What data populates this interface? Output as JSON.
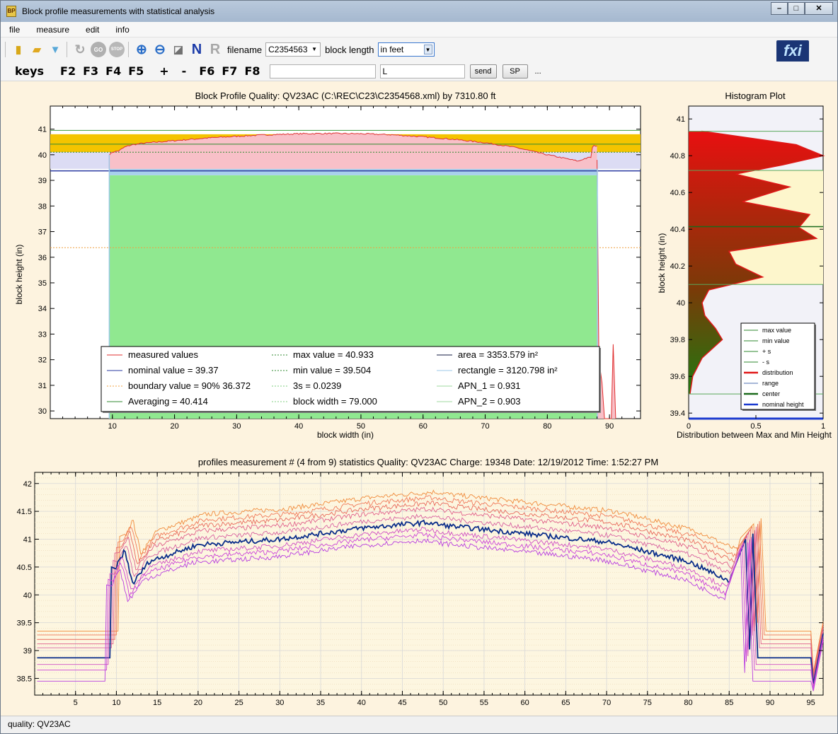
{
  "window": {
    "title": "Block profile measurements with statistical analysis",
    "app_icon": "BP"
  },
  "menu": [
    "file",
    "measure",
    "edit",
    "info"
  ],
  "toolbar": {
    "icons": [
      "folder-icon",
      "open-folder-icon",
      "filter-icon",
      "refresh-icon",
      "go-icon",
      "stop-icon",
      "zoom-in-icon",
      "zoom-out-icon",
      "eraser-icon",
      "n-icon",
      "r-icon"
    ],
    "icon_glyphs": [
      "▮",
      "▰",
      "▼",
      "↻",
      "GO",
      "STOP",
      "⊕",
      "⊖",
      "◪",
      "N",
      "R"
    ],
    "filename_label": "filename",
    "filename_value": "C2354563",
    "block_length_label": "block length",
    "block_length_value": "in feet",
    "logo": "fxi"
  },
  "keys": {
    "label": "keys",
    "buttons": [
      "F2",
      "F3",
      "F4",
      "F5",
      "+",
      "-",
      "F6",
      "F7",
      "F8"
    ],
    "input1": "",
    "input2": "L",
    "send": "send",
    "sp": "SP",
    "more": "..."
  },
  "charts": [
    {
      "id": "profile",
      "type": "area",
      "title": "Block Profile Quality: QV23AC (C:\\REC\\C23\\C2354568.xml) by 7310.80 ft",
      "xlabel": "block width (in)",
      "ylabel": "block height (in)",
      "xlim": [
        0,
        95
      ],
      "ylim": [
        29.7,
        41.9
      ],
      "x_ticks": [
        10,
        20,
        30,
        40,
        50,
        60,
        70,
        80,
        90
      ],
      "y_ticks": [
        30,
        31,
        32,
        33,
        34,
        35,
        36,
        37,
        38,
        39,
        40,
        41
      ],
      "reference_lines": {
        "max": 40.933,
        "min": 39.504,
        "nominal": 39.37,
        "boundary": 36.372,
        "averaging": 40.414,
        "upper_green": 40.95
      },
      "bands": {
        "gold": [
          40.1,
          40.8
        ],
        "lavender": [
          39.45,
          40.1
        ]
      },
      "block_range": [
        9.5,
        88.5
      ],
      "profile": {
        "x": [
          9.5,
          10,
          11,
          12,
          13,
          15,
          20,
          25,
          30,
          35,
          40,
          45,
          50,
          55,
          60,
          65,
          70,
          75,
          80,
          83,
          85,
          86,
          87,
          87.3,
          88
        ],
        "y": [
          40.0,
          40.1,
          40.15,
          40.3,
          40.38,
          40.45,
          40.55,
          40.65,
          40.72,
          40.78,
          40.82,
          40.83,
          40.82,
          40.78,
          40.7,
          40.6,
          40.47,
          40.28,
          40.0,
          39.85,
          39.75,
          39.85,
          39.9,
          40.35,
          40.35
        ]
      },
      "tail": {
        "x": [
          88,
          88.3,
          88.8,
          89.2,
          90.3,
          90.6,
          91
        ],
        "y": [
          39.8,
          32.0,
          31.1,
          29.7,
          29.7,
          32.6,
          29.7
        ]
      },
      "legend": [
        {
          "label": "measured values",
          "color": "#e03030",
          "style": "solid"
        },
        {
          "label": "nominal value = 39.37",
          "color": "#2a3aa0",
          "style": "solid"
        },
        {
          "label": "boundary value = 90% 36.372",
          "color": "#f0a040",
          "style": "dotted"
        },
        {
          "label": "Averaging = 40.414",
          "color": "#2f8a2f",
          "style": "solid"
        },
        {
          "label": "max value = 40.933",
          "color": "#2f8a2f",
          "style": "dotted"
        },
        {
          "label": "min value = 39.504",
          "color": "#2f8a2f",
          "style": "dotted"
        },
        {
          "label": "3s = 0.0239",
          "color": "#7fcc7f",
          "style": "dotted"
        },
        {
          "label": "block width = 79.000",
          "color": "#7fcc7f",
          "style": "dotted"
        },
        {
          "label": "area =  3353.579 in²",
          "color": "#101840",
          "style": "solid"
        },
        {
          "label": "rectangle = 3120.798 in²",
          "color": "#9cc8e8",
          "style": "solid"
        },
        {
          "label": "APN_1 = 0.931",
          "color": "#9fd89f",
          "style": "solid"
        },
        {
          "label": "APN_2 = 0.903",
          "color": "#9fd89f",
          "style": "solid"
        }
      ]
    },
    {
      "id": "histogram",
      "type": "area",
      "title": "Histogram Plot",
      "xlabel": "Distribution between Max and Min Height",
      "ylabel": "block height (in)",
      "xlim": [
        0,
        1
      ],
      "ylim": [
        39.37,
        41.07
      ],
      "x_ticks": [
        0,
        0.5,
        1
      ],
      "y_ticks": [
        39.4,
        39.6,
        39.8,
        40,
        40.2,
        40.4,
        40.6,
        40.8,
        41
      ],
      "lines": {
        "max": 40.933,
        "min": 39.504,
        "plus_s": 40.72,
        "minus_s": 40.1,
        "center": 40.414,
        "nominal": 39.37
      },
      "distribution": {
        "y": [
          40.933,
          40.86,
          40.8,
          40.75,
          40.7,
          40.63,
          40.55,
          40.48,
          40.41,
          40.35,
          40.28,
          40.21,
          40.14,
          40.07,
          40.0,
          39.93,
          39.86,
          39.8,
          39.7,
          39.6,
          39.504
        ],
        "x": [
          0.1,
          0.8,
          1.0,
          0.7,
          0.35,
          0.75,
          0.4,
          0.9,
          0.82,
          0.95,
          0.3,
          0.35,
          0.55,
          0.15,
          0.1,
          0.12,
          0.2,
          0.25,
          0.1,
          0.03,
          0.01
        ]
      },
      "legend": [
        {
          "label": "max value",
          "color": "#2f8a2f"
        },
        {
          "label": "min value",
          "color": "#2f8a2f"
        },
        {
          "label": "+ s",
          "color": "#2f8a2f"
        },
        {
          "label": "- s",
          "color": "#2f8a2f"
        },
        {
          "label": "distribution",
          "color": "#e01818"
        },
        {
          "label": "range",
          "color": "#5070b0"
        },
        {
          "label": "center",
          "color": "#1b6a1b"
        },
        {
          "label": "nominal height",
          "color": "#1a3ad0"
        }
      ]
    },
    {
      "id": "statistics",
      "type": "line",
      "title": "profiles measurement # (4 from 9) statistics   Quality: QV23AC  Charge: 19348  Date: 12/19/2012  Time: 1:52:27 PM",
      "xlim": [
        0,
        96.5
      ],
      "ylim": [
        38.2,
        42.2
      ],
      "x_ticks": [
        5,
        10,
        15,
        20,
        25,
        30,
        35,
        40,
        45,
        50,
        55,
        60,
        65,
        70,
        75,
        80,
        85,
        90,
        95
      ],
      "y_ticks": [
        38.5,
        39,
        39.5,
        40,
        40.5,
        41,
        41.5,
        42
      ],
      "base_shape": {
        "x": [
          10,
          11,
          12,
          14,
          20,
          30,
          40,
          48,
          50,
          60,
          70,
          80,
          85,
          86
        ],
        "y": [
          40.5,
          40.8,
          40.2,
          40.6,
          40.9,
          41.0,
          41.2,
          41.3,
          41.25,
          41.1,
          40.95,
          40.6,
          40.25,
          40.7
        ]
      },
      "series": [
        {
          "offset": 0.55,
          "base": 39.35,
          "start": 11,
          "end": 89.5,
          "color": "#f08a3a"
        },
        {
          "offset": 0.45,
          "base": 39.28,
          "start": 10.8,
          "end": 89.3,
          "color": "#f07858"
        },
        {
          "offset": 0.35,
          "base": 39.2,
          "start": 10.6,
          "end": 89.1,
          "color": "#e86a5c"
        },
        {
          "offset": 0.25,
          "base": 39.12,
          "start": 10.4,
          "end": 88.9,
          "color": "#e0608a"
        },
        {
          "offset": 0.12,
          "base": 39.05,
          "start": 10.2,
          "end": 88.7,
          "color": "#d862a0"
        },
        {
          "offset": 0.0,
          "base": 38.87,
          "start": 10.0,
          "end": 88.5,
          "color": "#0a2d8a",
          "highlight": true
        },
        {
          "offset": -0.12,
          "base": 38.75,
          "start": 9.8,
          "end": 88.3,
          "color": "#d04ec4"
        },
        {
          "offset": -0.22,
          "base": 38.65,
          "start": 9.6,
          "end": 88.1,
          "color": "#cc44d8"
        },
        {
          "offset": -0.32,
          "base": 38.45,
          "start": 9.4,
          "end": 87.9,
          "color": "#b83ee0"
        }
      ]
    }
  ],
  "status": "quality: QV23AC"
}
